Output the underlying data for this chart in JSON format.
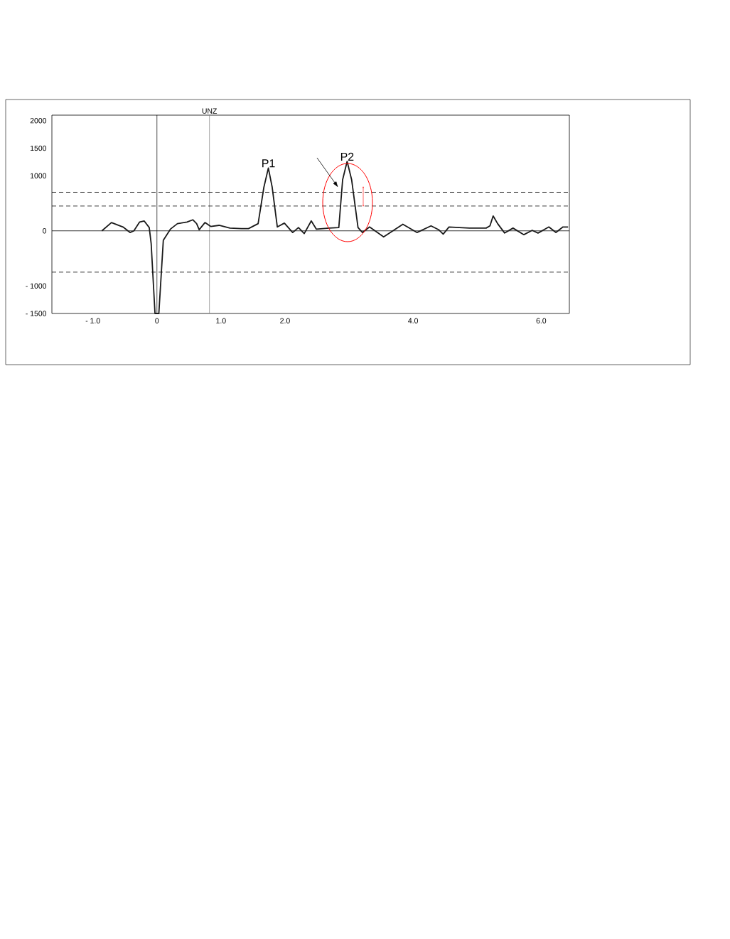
{
  "chart_data": {
    "type": "line",
    "x": [
      -0.86,
      -0.71,
      -0.53,
      -0.42,
      -0.36,
      -0.27,
      -0.2,
      -0.12,
      -0.09,
      -0.03,
      0.03,
      0.1,
      0.21,
      0.32,
      0.47,
      0.56,
      0.62,
      0.66,
      0.75,
      0.84,
      0.97,
      1.14,
      1.32,
      1.43,
      1.58,
      1.67,
      1.74,
      1.8,
      1.88,
      1.99,
      2.12,
      2.21,
      2.3,
      2.41,
      2.49,
      2.69,
      2.84,
      2.9,
      2.97,
      3.04,
      3.14,
      3.21,
      3.32,
      3.54,
      3.84,
      4.06,
      4.28,
      4.4,
      4.47,
      4.56,
      4.88,
      5.14,
      5.2,
      5.25,
      5.32,
      5.43,
      5.56,
      5.73,
      5.86,
      5.95,
      6.12,
      6.23,
      6.34,
      6.42
    ],
    "series": [
      {
        "color": "#1a1a1a",
        "values": [
          0,
          150,
          70,
          -30,
          0,
          160,
          180,
          60,
          -230,
          -1500,
          -1500,
          -170,
          30,
          130,
          160,
          200,
          130,
          20,
          150,
          80,
          100,
          50,
          40,
          40,
          130,
          790,
          1140,
          790,
          70,
          140,
          -30,
          60,
          -50,
          180,
          30,
          50,
          60,
          930,
          1260,
          930,
          60,
          -30,
          70,
          -110,
          120,
          -30,
          90,
          20,
          -60,
          70,
          50,
          50,
          90,
          270,
          130,
          -40,
          50,
          -70,
          10,
          -40,
          70,
          -30,
          70,
          70
        ]
      }
    ],
    "xlim": [
      -1.64,
      6.44
    ],
    "ylim": [
      -1500,
      2100
    ],
    "xticks": [
      {
        "value": -1,
        "label": "- 1.0"
      },
      0,
      {
        "value": 1,
        "label": "1.0"
      },
      {
        "value": 2,
        "label": "2.0"
      },
      {
        "value": 4,
        "label": "4.0"
      },
      {
        "value": 6,
        "label": "6.0"
      }
    ],
    "yticks": [
      {
        "value": -1500,
        "label": "- 1500"
      },
      {
        "value": -1000,
        "label": "- 1000"
      },
      0,
      1000,
      1500,
      2000
    ],
    "ref_lines": [
      {
        "axis": "x",
        "value": 0,
        "color": "#000000",
        "line_style": "solid"
      },
      {
        "axis": "x",
        "value": 0.82,
        "label": "UNZ",
        "color": "#808080",
        "line_style": "solid"
      },
      {
        "axis": "y",
        "value": 0,
        "color": "#000000",
        "line_style": "solid"
      },
      {
        "axis": "y",
        "value": 700,
        "color": "#000000",
        "line_style": "dashed"
      },
      {
        "axis": "y",
        "value": 450,
        "color": "#000000",
        "line_style": "dashed"
      },
      {
        "axis": "y",
        "value": -750,
        "color": "#000000",
        "line_style": "dashed"
      }
    ],
    "annotations": [
      {
        "text": "P1",
        "x": 1.74,
        "y": 1140
      },
      {
        "text": "P2",
        "x": 2.97,
        "y": 1260
      }
    ]
  }
}
